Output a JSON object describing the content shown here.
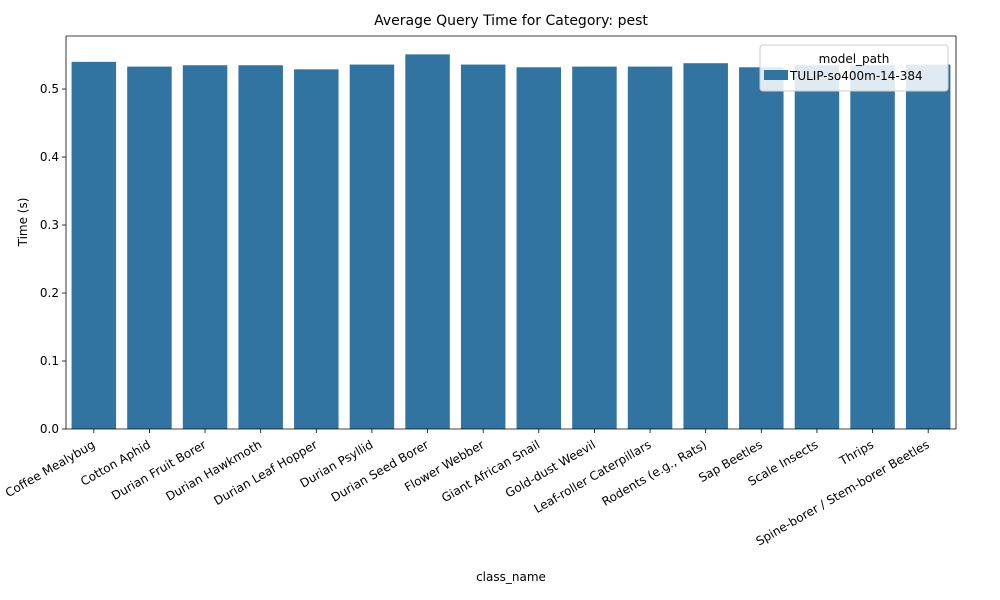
{
  "chart_data": {
    "type": "bar",
    "title": "Average Query Time for Category: pest",
    "xlabel": "class_name",
    "ylabel": "Time (s)",
    "ylim": [
      0,
      0.578
    ],
    "yticks": [
      0.0,
      0.1,
      0.2,
      0.3,
      0.4,
      0.5
    ],
    "ytick_labels": [
      "0.0",
      "0.1",
      "0.2",
      "0.3",
      "0.4",
      "0.5"
    ],
    "grid": false,
    "legend_position": "top-right",
    "legend_title": "model_path",
    "categories": [
      "Coffee Mealybug",
      "Cotton Aphid",
      "Durian Fruit Borer",
      "Durian Hawkmoth",
      "Durian Leaf Hopper",
      "Durian Psyllid",
      "Durian Seed Borer",
      "Flower Webber",
      "Giant African Snail",
      "Gold-dust Weevil",
      "Leaf-roller Caterpillars",
      "Rodents (e.g., Rats)",
      "Sap Beetles",
      "Scale Insects",
      "Thrips",
      "Spine-borer / Stem-borer Beetles"
    ],
    "series": [
      {
        "name": "TULIP-so400m-14-384",
        "color": "#3274a1",
        "values": [
          0.54,
          0.533,
          0.535,
          0.535,
          0.529,
          0.536,
          0.551,
          0.536,
          0.532,
          0.533,
          0.533,
          0.538,
          0.532,
          0.535,
          0.535,
          0.536
        ]
      }
    ]
  }
}
